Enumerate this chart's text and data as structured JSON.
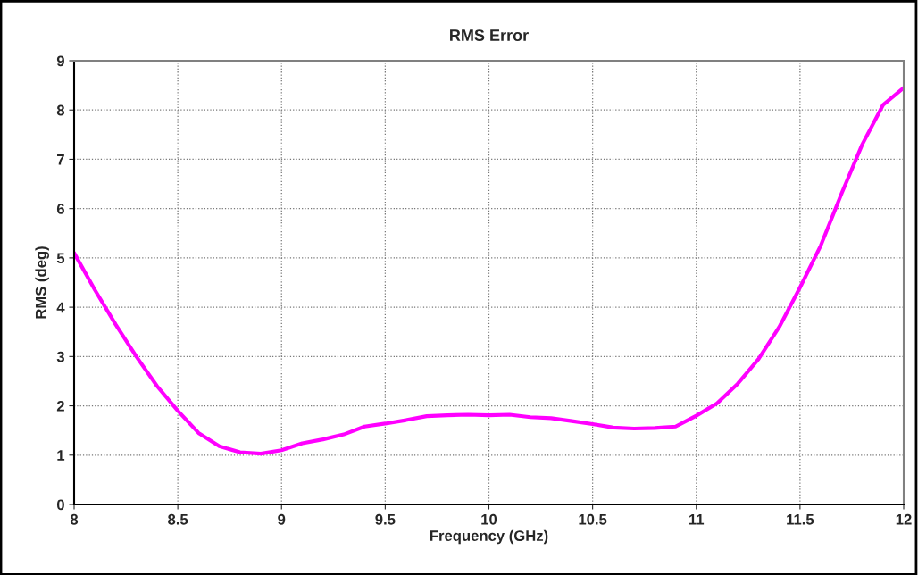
{
  "chart_data": {
    "type": "line",
    "title": "RMS Error",
    "xlabel": "Frequency (GHz)",
    "ylabel": "RMS (deg)",
    "x": [
      8.0,
      8.1,
      8.2,
      8.3,
      8.4,
      8.5,
      8.6,
      8.7,
      8.8,
      8.9,
      9.0,
      9.1,
      9.2,
      9.3,
      9.4,
      9.5,
      9.6,
      9.7,
      9.8,
      9.9,
      10.0,
      10.1,
      10.2,
      10.3,
      10.4,
      10.5,
      10.6,
      10.7,
      10.8,
      10.9,
      11.0,
      11.1,
      11.2,
      11.3,
      11.4,
      11.5,
      11.6,
      11.7,
      11.8,
      11.9,
      12.0
    ],
    "series": [
      {
        "color": "#ff00ff",
        "values": [
          5.1,
          4.35,
          3.65,
          3.0,
          2.4,
          1.9,
          1.45,
          1.18,
          1.06,
          1.03,
          1.1,
          1.24,
          1.32,
          1.42,
          1.58,
          1.64,
          1.71,
          1.79,
          1.81,
          1.82,
          1.81,
          1.82,
          1.77,
          1.75,
          1.69,
          1.63,
          1.56,
          1.54,
          1.55,
          1.58,
          1.8,
          2.05,
          2.45,
          2.95,
          3.6,
          4.4,
          5.25,
          6.3,
          7.3,
          8.1,
          8.45
        ]
      }
    ],
    "xlim": [
      8,
      12
    ],
    "ylim": [
      0,
      9
    ],
    "xticks": [
      8,
      8.5,
      9,
      9.5,
      10,
      10.5,
      11,
      11.5,
      12
    ],
    "yticks": [
      0,
      1,
      2,
      3,
      4,
      5,
      6,
      7,
      8,
      9
    ],
    "grid": true,
    "legend": false,
    "marker": "none",
    "line_style": "solid"
  }
}
